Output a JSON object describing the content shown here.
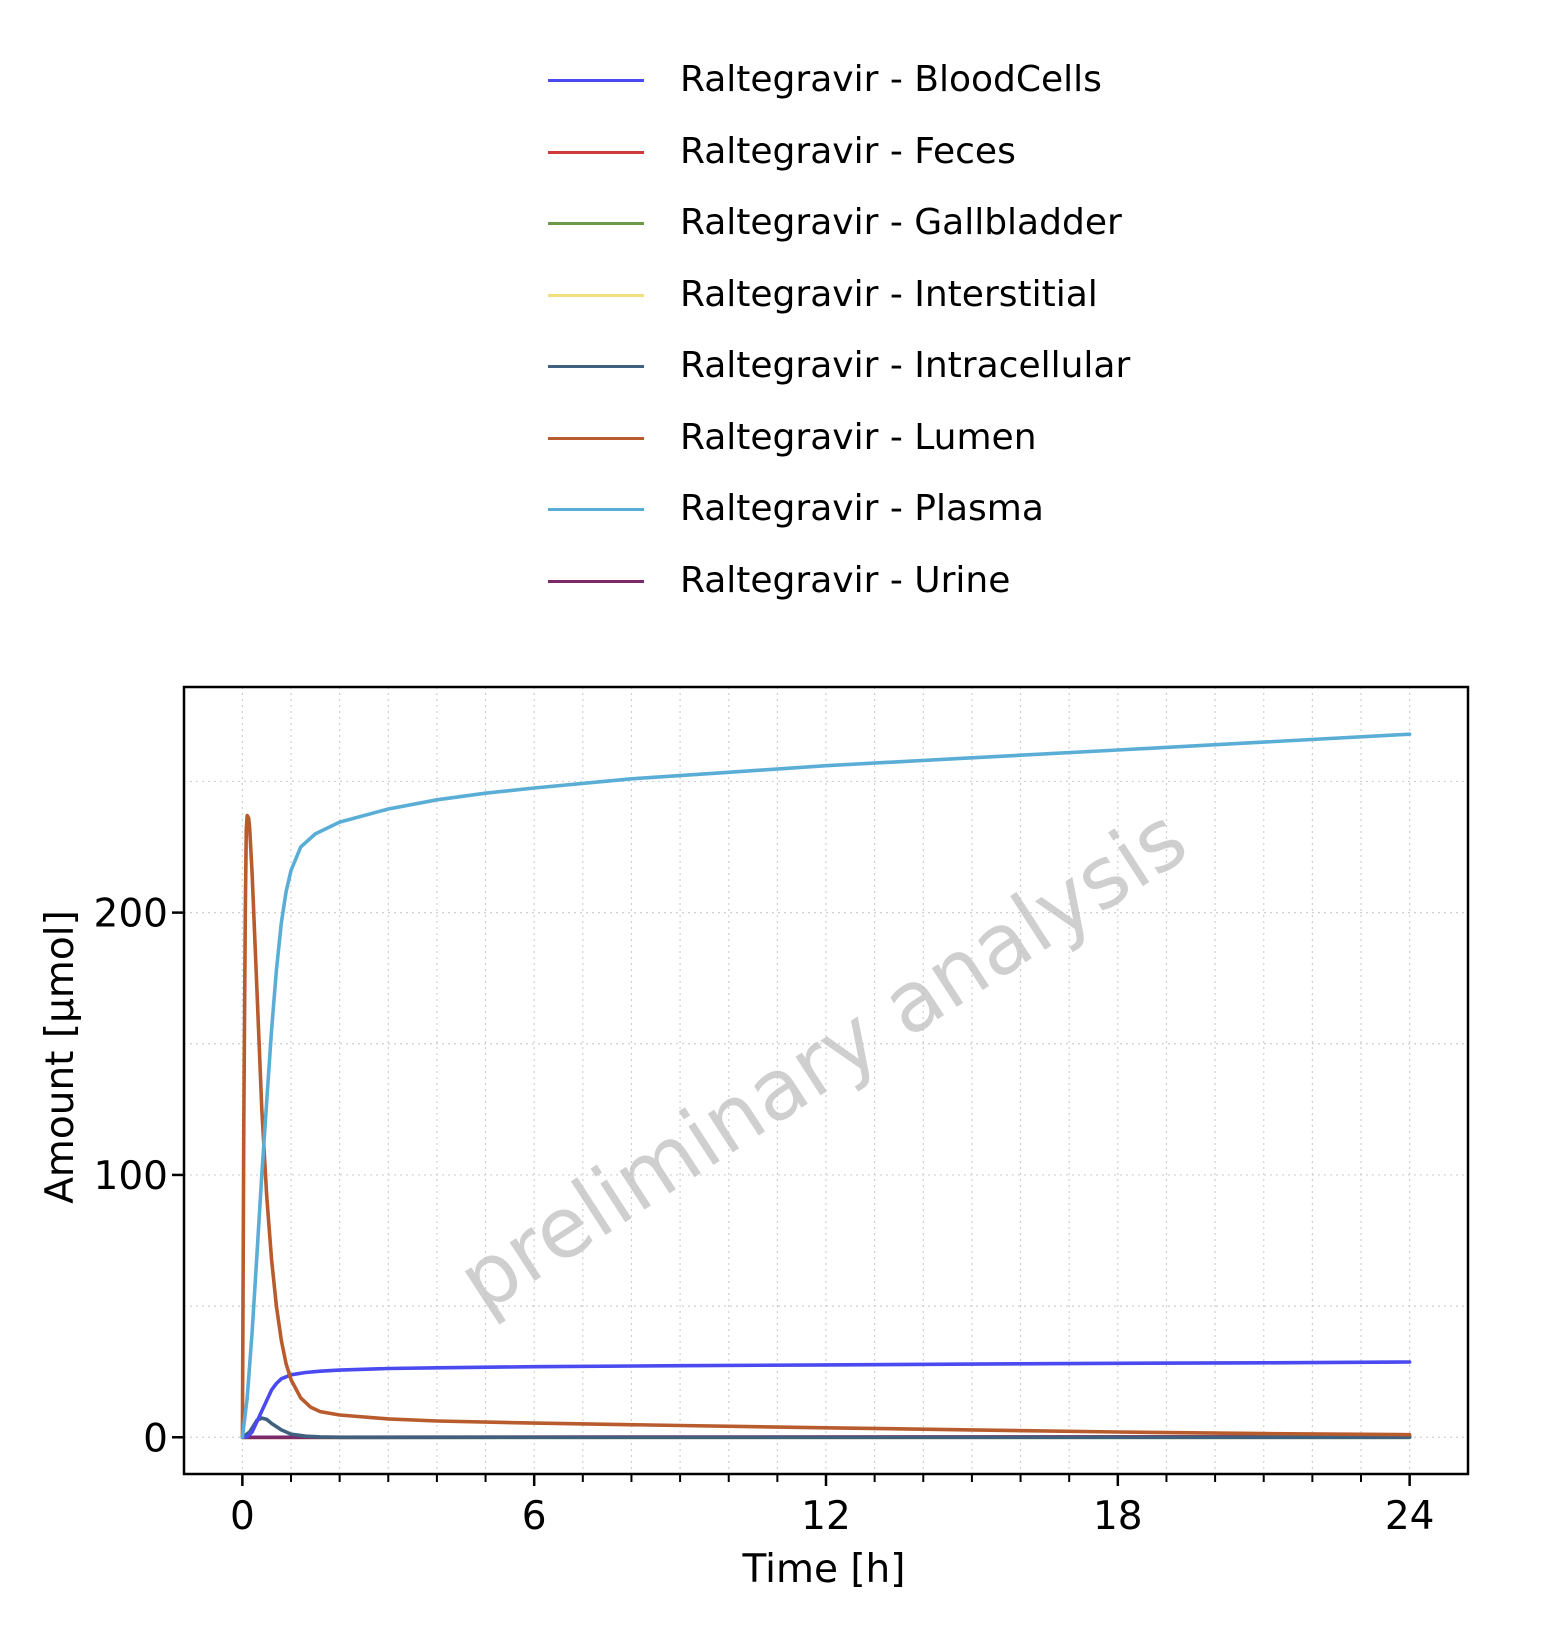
{
  "chart_data": {
    "type": "line",
    "xlabel": "Time [h]",
    "ylabel": "Amount [µmol]",
    "xlim": [
      -1.2,
      25.2
    ],
    "ylim": [
      -14,
      286
    ],
    "x_ticks": [
      0,
      6,
      12,
      18,
      24
    ],
    "y_ticks": [
      0,
      100,
      200
    ],
    "x_minor_ticks": [
      1,
      2,
      3,
      4,
      5,
      7,
      8,
      9,
      10,
      11,
      13,
      14,
      15,
      16,
      17,
      19,
      20,
      21,
      22,
      23
    ],
    "grid": true,
    "legend_position": "top",
    "watermark": "preliminary analysis",
    "series": [
      {
        "name": "Raltegravir - BloodCells",
        "color": "#4a4af0",
        "points": [
          [
            0,
            0
          ],
          [
            0.1,
            0.3
          ],
          [
            0.2,
            2
          ],
          [
            0.3,
            6
          ],
          [
            0.4,
            10
          ],
          [
            0.5,
            14
          ],
          [
            0.6,
            18
          ],
          [
            0.7,
            20.5
          ],
          [
            0.8,
            22.3
          ],
          [
            1,
            23.8
          ],
          [
            1.3,
            24.7
          ],
          [
            1.6,
            25.2
          ],
          [
            2,
            25.6
          ],
          [
            3,
            26.2
          ],
          [
            4,
            26.5
          ],
          [
            6,
            26.9
          ],
          [
            9,
            27.3
          ],
          [
            12,
            27.6
          ],
          [
            15,
            27.9
          ],
          [
            18,
            28.2
          ],
          [
            21,
            28.4
          ],
          [
            24,
            28.7
          ]
        ]
      },
      {
        "name": "Raltegravir - Feces",
        "color": "#d03a3a",
        "points": [
          [
            0,
            0
          ],
          [
            24,
            0.2
          ]
        ]
      },
      {
        "name": "Raltegravir - Gallbladder",
        "color": "#6a9a4a",
        "points": [
          [
            0,
            0
          ],
          [
            24,
            0
          ]
        ]
      },
      {
        "name": "Raltegravir - Interstitial",
        "color": "#f0e080",
        "points": [
          [
            0,
            0
          ],
          [
            24,
            0
          ]
        ]
      },
      {
        "name": "Raltegravir - Intracellular",
        "color": "#3f607e",
        "points": [
          [
            0,
            0
          ],
          [
            0.15,
            2
          ],
          [
            0.3,
            6.5
          ],
          [
            0.4,
            7.3
          ],
          [
            0.5,
            6.8
          ],
          [
            0.6,
            5.3
          ],
          [
            0.8,
            2.8
          ],
          [
            1,
            1.2
          ],
          [
            1.3,
            0.4
          ],
          [
            1.6,
            0.15
          ],
          [
            2,
            0
          ],
          [
            24,
            0
          ]
        ]
      },
      {
        "name": "Raltegravir - Lumen",
        "color": "#b85c2e",
        "points": [
          [
            0,
            0
          ],
          [
            0.03,
            120
          ],
          [
            0.06,
            200
          ],
          [
            0.08,
            232
          ],
          [
            0.1,
            237
          ],
          [
            0.13,
            236
          ],
          [
            0.15,
            232
          ],
          [
            0.2,
            215
          ],
          [
            0.3,
            170
          ],
          [
            0.4,
            125
          ],
          [
            0.5,
            92
          ],
          [
            0.6,
            68
          ],
          [
            0.7,
            50
          ],
          [
            0.8,
            37
          ],
          [
            0.9,
            28
          ],
          [
            1,
            22
          ],
          [
            1.2,
            15
          ],
          [
            1.4,
            11.5
          ],
          [
            1.6,
            9.8
          ],
          [
            2,
            8.5
          ],
          [
            3,
            7
          ],
          [
            4,
            6.2
          ],
          [
            6,
            5.4
          ],
          [
            9,
            4.5
          ],
          [
            12,
            3.6
          ],
          [
            15,
            2.8
          ],
          [
            18,
            2.0
          ],
          [
            21,
            1.4
          ],
          [
            24,
            1.0
          ]
        ]
      },
      {
        "name": "Raltegravir - Plasma",
        "color": "#5aaed6",
        "points": [
          [
            0,
            0
          ],
          [
            0.1,
            15
          ],
          [
            0.2,
            40
          ],
          [
            0.3,
            70
          ],
          [
            0.4,
            100
          ],
          [
            0.5,
            128
          ],
          [
            0.6,
            155
          ],
          [
            0.7,
            178
          ],
          [
            0.8,
            196
          ],
          [
            0.9,
            208
          ],
          [
            1,
            216
          ],
          [
            1.2,
            225
          ],
          [
            1.5,
            230
          ],
          [
            2,
            234.5
          ],
          [
            3,
            239.5
          ],
          [
            4,
            243
          ],
          [
            5,
            245.5
          ],
          [
            6,
            247.5
          ],
          [
            8,
            251
          ],
          [
            10,
            253.5
          ],
          [
            12,
            256
          ],
          [
            15,
            259
          ],
          [
            18,
            262
          ],
          [
            21,
            265
          ],
          [
            24,
            268
          ]
        ]
      },
      {
        "name": "Raltegravir - Urine",
        "color": "#7a2a6a",
        "points": [
          [
            0,
            0
          ],
          [
            24,
            0.1
          ]
        ]
      }
    ]
  }
}
